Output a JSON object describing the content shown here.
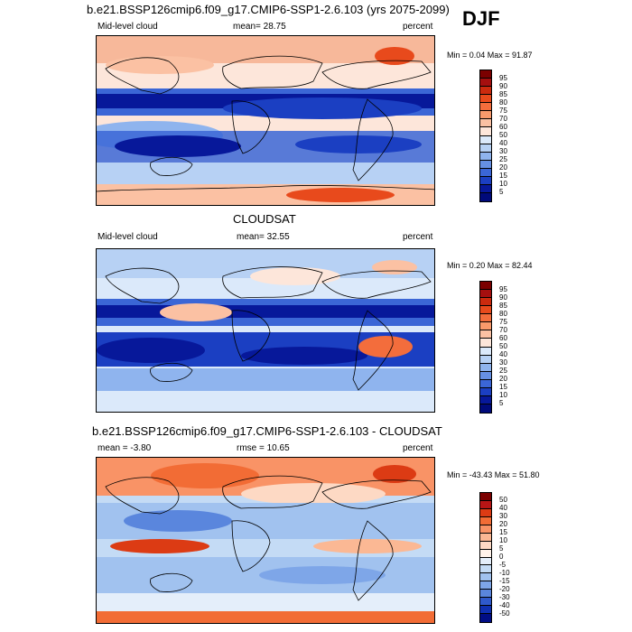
{
  "season": "DJF",
  "panels": [
    {
      "title": "b.e21.BSSP126cmip6.f09_g17.CMIP6-SSP1-2.6.103 (yrs 2075-2099)",
      "left_label": "Mid-level cloud",
      "center_label": "mean=  28.75",
      "right_label": "percent",
      "minmax": "Min =   0.04 Max =  91.87",
      "colorbar_labels": [
        "95",
        "90",
        "85",
        "80",
        "75",
        "70",
        "60",
        "50",
        "40",
        "30",
        "25",
        "20",
        "15",
        "10",
        "5"
      ]
    },
    {
      "title": "CLOUDSAT",
      "left_label": "Mid-level cloud",
      "center_label": "mean=  32.55",
      "right_label": "percent",
      "minmax": "Min =   0.20 Max =  82.44",
      "colorbar_labels": [
        "95",
        "90",
        "85",
        "80",
        "75",
        "70",
        "60",
        "50",
        "40",
        "30",
        "25",
        "20",
        "15",
        "10",
        "5"
      ]
    },
    {
      "title": "b.e21.BSSP126cmip6.f09_g17.CMIP6-SSP1-2.6.103 - CLOUDSAT",
      "left_label": "mean =  -3.80",
      "center_label": "rmse =  10.65",
      "right_label": "percent",
      "minmax": "Min = -43.43 Max =  51.80",
      "colorbar_labels": [
        "50",
        "40",
        "30",
        "20",
        "15",
        "10",
        "5",
        "0",
        "-5",
        "-10",
        "-15",
        "-20",
        "-30",
        "-40",
        "-50"
      ]
    }
  ],
  "colors": {
    "abs_scale": [
      "#7b0000",
      "#a50f0f",
      "#cb2a0e",
      "#e84a1c",
      "#f36d3c",
      "#f99a6b",
      "#fbc1a3",
      "#fde6da",
      "#dbe9fa",
      "#b7d1f4",
      "#8fb4ee",
      "#6690e3",
      "#3b66d6",
      "#1b3fc2",
      "#07189a",
      "#000a7a"
    ],
    "diff_scale": [
      "#7b0000",
      "#b81515",
      "#dc3b14",
      "#f26c35",
      "#f99366",
      "#fbb894",
      "#fdd9c4",
      "#fff2ea",
      "#e4eefa",
      "#c4dbf5",
      "#a1c2ef",
      "#7ea6e8",
      "#5a86dd",
      "#2f59cc",
      "#0f2fb1",
      "#010d85"
    ]
  }
}
